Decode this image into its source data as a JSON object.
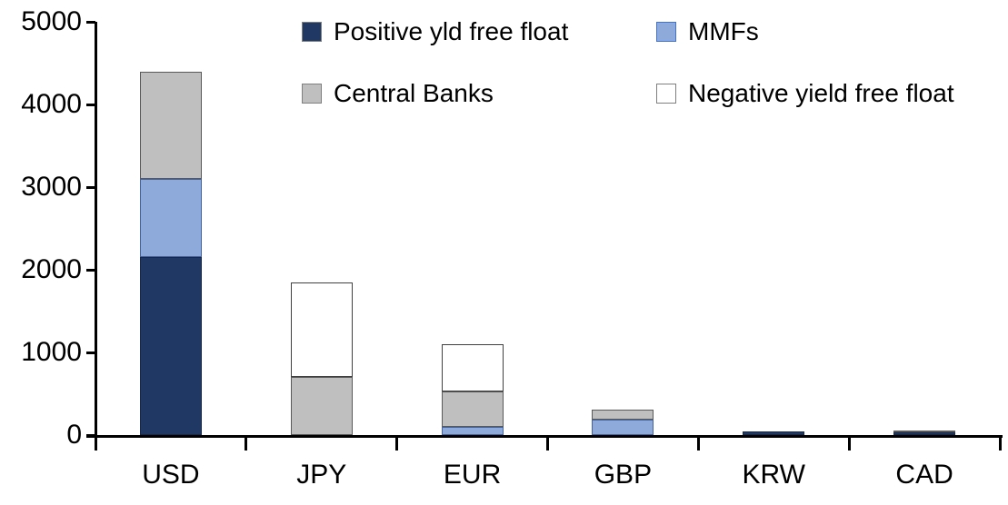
{
  "chart_data": {
    "type": "bar",
    "stacked": true,
    "title": "",
    "xlabel": "",
    "ylabel": "",
    "categories": [
      "USD",
      "JPY",
      "EUR",
      "GBP",
      "KRW",
      "CAD"
    ],
    "series": [
      {
        "name": "Positive yld free float",
        "color": "#1F3864",
        "stroke": "#17294A",
        "swatch_border": "#7F7F7F",
        "values": [
          2150,
          0,
          0,
          0,
          40,
          30
        ]
      },
      {
        "name": "MMFs",
        "color": "#8EAADB",
        "stroke": "#44629E",
        "swatch_border": "#4472C4",
        "values": [
          950,
          0,
          100,
          190,
          0,
          0
        ]
      },
      {
        "name": "Central Banks",
        "color": "#BFBFBF",
        "stroke": "#595959",
        "swatch_border": "#7F7F7F",
        "values": [
          1300,
          700,
          430,
          120,
          0,
          30
        ]
      },
      {
        "name": "Negative yield free float",
        "color": "#FFFFFF",
        "stroke": "#404040",
        "swatch_border": "#7F7F7F",
        "values": [
          0,
          1150,
          570,
          0,
          0,
          0
        ]
      }
    ],
    "ylim": [
      0,
      5000
    ],
    "yticks": [
      0,
      1000,
      2000,
      3000,
      4000,
      5000
    ],
    "grid": false,
    "legend_position": "top"
  },
  "colors": {
    "axis": "#000000",
    "background": "#FFFFFF",
    "text": "#000000"
  }
}
